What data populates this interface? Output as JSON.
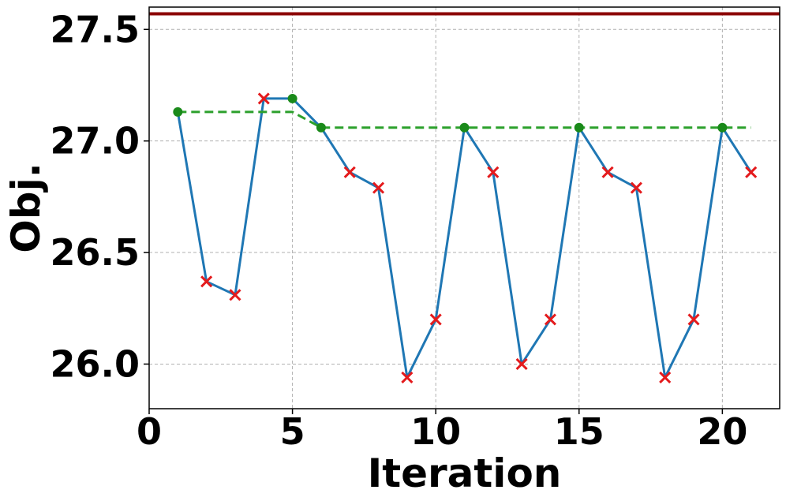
{
  "chart_data": {
    "type": "line",
    "title": "",
    "xlabel": "Iteration",
    "ylabel": "Obj.",
    "xlim": [
      0,
      22
    ],
    "ylim": [
      25.8,
      27.6
    ],
    "x_ticks": [
      0,
      5,
      10,
      15,
      20
    ],
    "y_ticks": [
      26.0,
      26.5,
      27.0,
      27.5
    ],
    "x_tick_labels": [
      "0",
      "5",
      "10",
      "15",
      "20"
    ],
    "y_tick_labels": [
      "26.0",
      "26.5",
      "27.0",
      "27.5"
    ],
    "grid": true,
    "legend": "none",
    "series": [
      {
        "style": "solid-line",
        "color": "#1f77b4",
        "x": [
          1,
          2,
          3,
          4,
          5,
          6,
          7,
          8,
          9,
          10,
          11,
          12,
          13,
          14,
          15,
          16,
          17,
          18,
          19,
          20,
          21
        ],
        "y": [
          27.13,
          26.37,
          26.31,
          27.19,
          27.19,
          27.06,
          26.86,
          26.79,
          25.94,
          26.2,
          27.06,
          26.86,
          26.0,
          26.2,
          27.06,
          26.86,
          26.79,
          25.94,
          26.2,
          27.06,
          26.86
        ]
      },
      {
        "style": "dashed-line",
        "color": "#2ca02c",
        "x": [
          1,
          2,
          3,
          4,
          5,
          6,
          7,
          8,
          9,
          10,
          11,
          12,
          13,
          14,
          15,
          16,
          17,
          18,
          19,
          20,
          21
        ],
        "y": [
          27.13,
          27.13,
          27.13,
          27.13,
          27.13,
          27.06,
          27.06,
          27.06,
          27.06,
          27.06,
          27.06,
          27.06,
          27.06,
          27.06,
          27.06,
          27.06,
          27.06,
          27.06,
          27.06,
          27.06,
          27.06
        ]
      },
      {
        "style": "green-dot-markers",
        "color": "#1a8a1a",
        "x": [
          1,
          5,
          6,
          11,
          15,
          20
        ],
        "y": [
          27.13,
          27.19,
          27.06,
          27.06,
          27.06,
          27.06
        ]
      },
      {
        "style": "red-x-markers",
        "color": "#e41a1c",
        "x": [
          2,
          3,
          4,
          7,
          8,
          9,
          10,
          12,
          13,
          14,
          16,
          17,
          18,
          19,
          21
        ],
        "y": [
          26.37,
          26.31,
          27.19,
          26.86,
          26.79,
          25.94,
          26.2,
          26.86,
          26.0,
          26.2,
          26.86,
          26.79,
          25.94,
          26.2,
          26.86
        ]
      },
      {
        "style": "horizontal-reference-line",
        "color": "#8b0000",
        "y": 27.57
      }
    ]
  }
}
